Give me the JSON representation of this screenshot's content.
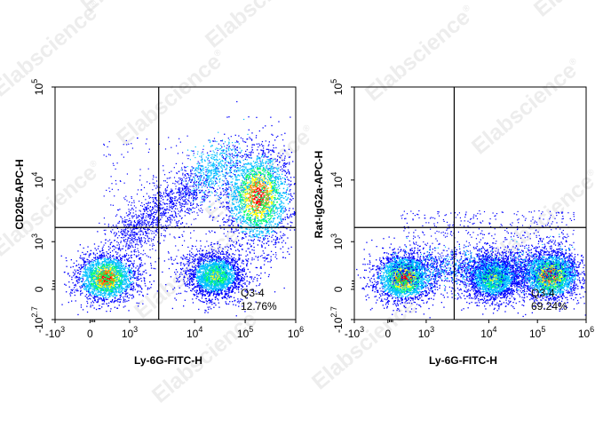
{
  "watermark": "Elabscience",
  "trademark": "®",
  "chart_data": [
    {
      "type": "scatter",
      "xlabel": "Ly-6G-FITC-H",
      "ylabel": "CD205-APC-H",
      "x_ticks": [
        {
          "base": "-10",
          "exp": "3"
        },
        {
          "base": "0",
          "exp": ""
        },
        {
          "base": "10",
          "exp": "3"
        },
        {
          "base": "10",
          "exp": "4"
        },
        {
          "base": "10",
          "exp": "5"
        },
        {
          "base": "10",
          "exp": "6"
        }
      ],
      "y_ticks": [
        {
          "base": "-10",
          "exp": "2.7"
        },
        {
          "base": "0",
          "exp": ""
        },
        {
          "base": "10",
          "exp": "3"
        },
        {
          "base": "10",
          "exp": "4"
        },
        {
          "base": "10",
          "exp": "5"
        }
      ],
      "quadrant_gate": {
        "x": 2800,
        "y": 1700
      },
      "quadrant_label": "Q3-4",
      "quadrant_value": "12.76%",
      "color_scale": [
        "#0000ff",
        "#00c0ff",
        "#00ff60",
        "#ffff00",
        "#ff8000",
        "#ff0000"
      ],
      "populations": [
        {
          "x": 400,
          "y": 250,
          "density": "high"
        },
        {
          "x": 25000,
          "y": 300,
          "density": "medium"
        },
        {
          "x": 180000,
          "y": 5500,
          "density": "high"
        }
      ]
    },
    {
      "type": "scatter",
      "xlabel": "Ly-6G-FITC-H",
      "ylabel": "Rat-IgG2a-APC-H",
      "x_ticks": [
        {
          "base": "-10",
          "exp": "3"
        },
        {
          "base": "0",
          "exp": ""
        },
        {
          "base": "10",
          "exp": "3"
        },
        {
          "base": "10",
          "exp": "4"
        },
        {
          "base": "10",
          "exp": "5"
        },
        {
          "base": "10",
          "exp": "6"
        }
      ],
      "y_ticks": [
        {
          "base": "-10",
          "exp": "2.7"
        },
        {
          "base": "0",
          "exp": ""
        },
        {
          "base": "10",
          "exp": "3"
        },
        {
          "base": "10",
          "exp": "4"
        },
        {
          "base": "10",
          "exp": "5"
        }
      ],
      "quadrant_gate": {
        "x": 2800,
        "y": 1700
      },
      "quadrant_label": "Q3-4",
      "quadrant_value": "69.24%",
      "color_scale": [
        "#0000ff",
        "#00c0ff",
        "#00ff60",
        "#ffff00",
        "#ff8000",
        "#ff0000"
      ],
      "populations": [
        {
          "x": 400,
          "y": 250,
          "density": "high"
        },
        {
          "x": 12000,
          "y": 250,
          "density": "medium"
        },
        {
          "x": 180000,
          "y": 300,
          "density": "high"
        }
      ]
    }
  ]
}
